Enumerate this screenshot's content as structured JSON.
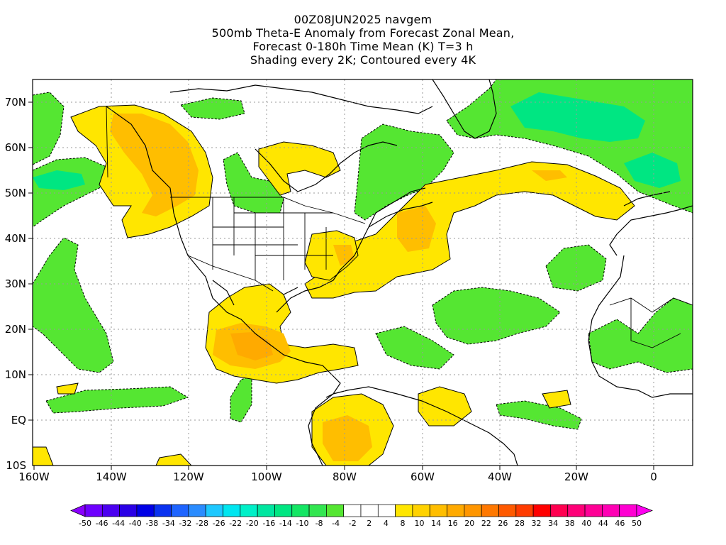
{
  "title": {
    "line1": "00Z08JUN2025 navgem",
    "line2": "500mb Theta-E Anomaly from Forecast Zonal Mean,",
    "line3": "Forecast 0-180h Time Mean (K) T=3 h",
    "line4": "Shading every 2K; Contoured every 4K"
  },
  "axes": {
    "lon_labels": [
      "160W",
      "140W",
      "120W",
      "100W",
      "80W",
      "60W",
      "40W",
      "20W",
      "0"
    ],
    "lat_labels": [
      "70N",
      "60N",
      "50N",
      "40N",
      "30N",
      "20N",
      "10N",
      "EQ",
      "10S"
    ]
  },
  "colorbar": {
    "labels": [
      "-50",
      "-46",
      "-44",
      "-40",
      "-38",
      "-34",
      "-32",
      "-28",
      "-26",
      "-22",
      "-20",
      "-16",
      "-14",
      "-10",
      "-8",
      "-4",
      "-2",
      "2",
      "4",
      "8",
      "10",
      "14",
      "16",
      "20",
      "22",
      "26",
      "28",
      "32",
      "34",
      "38",
      "40",
      "44",
      "46",
      "50"
    ],
    "colors": [
      "#8a00ff",
      "#6e00ff",
      "#4b00f0",
      "#2a00e6",
      "#0000e6",
      "#0a32f0",
      "#1e64ff",
      "#2a8cff",
      "#1ec8ff",
      "#00e6f0",
      "#00f0c8",
      "#00e6a0",
      "#00e682",
      "#14e664",
      "#32e650",
      "#55e632",
      "#ffffff",
      "#ffffff",
      "#ffffff",
      "#ffe600",
      "#ffd200",
      "#ffbe00",
      "#ffaa00",
      "#ff9600",
      "#ff7800",
      "#ff5a00",
      "#ff3c00",
      "#ff0000",
      "#ff0050",
      "#ff0078",
      "#ff0096",
      "#ff00b4",
      "#ff00d2",
      "#ff00f0"
    ]
  }
}
